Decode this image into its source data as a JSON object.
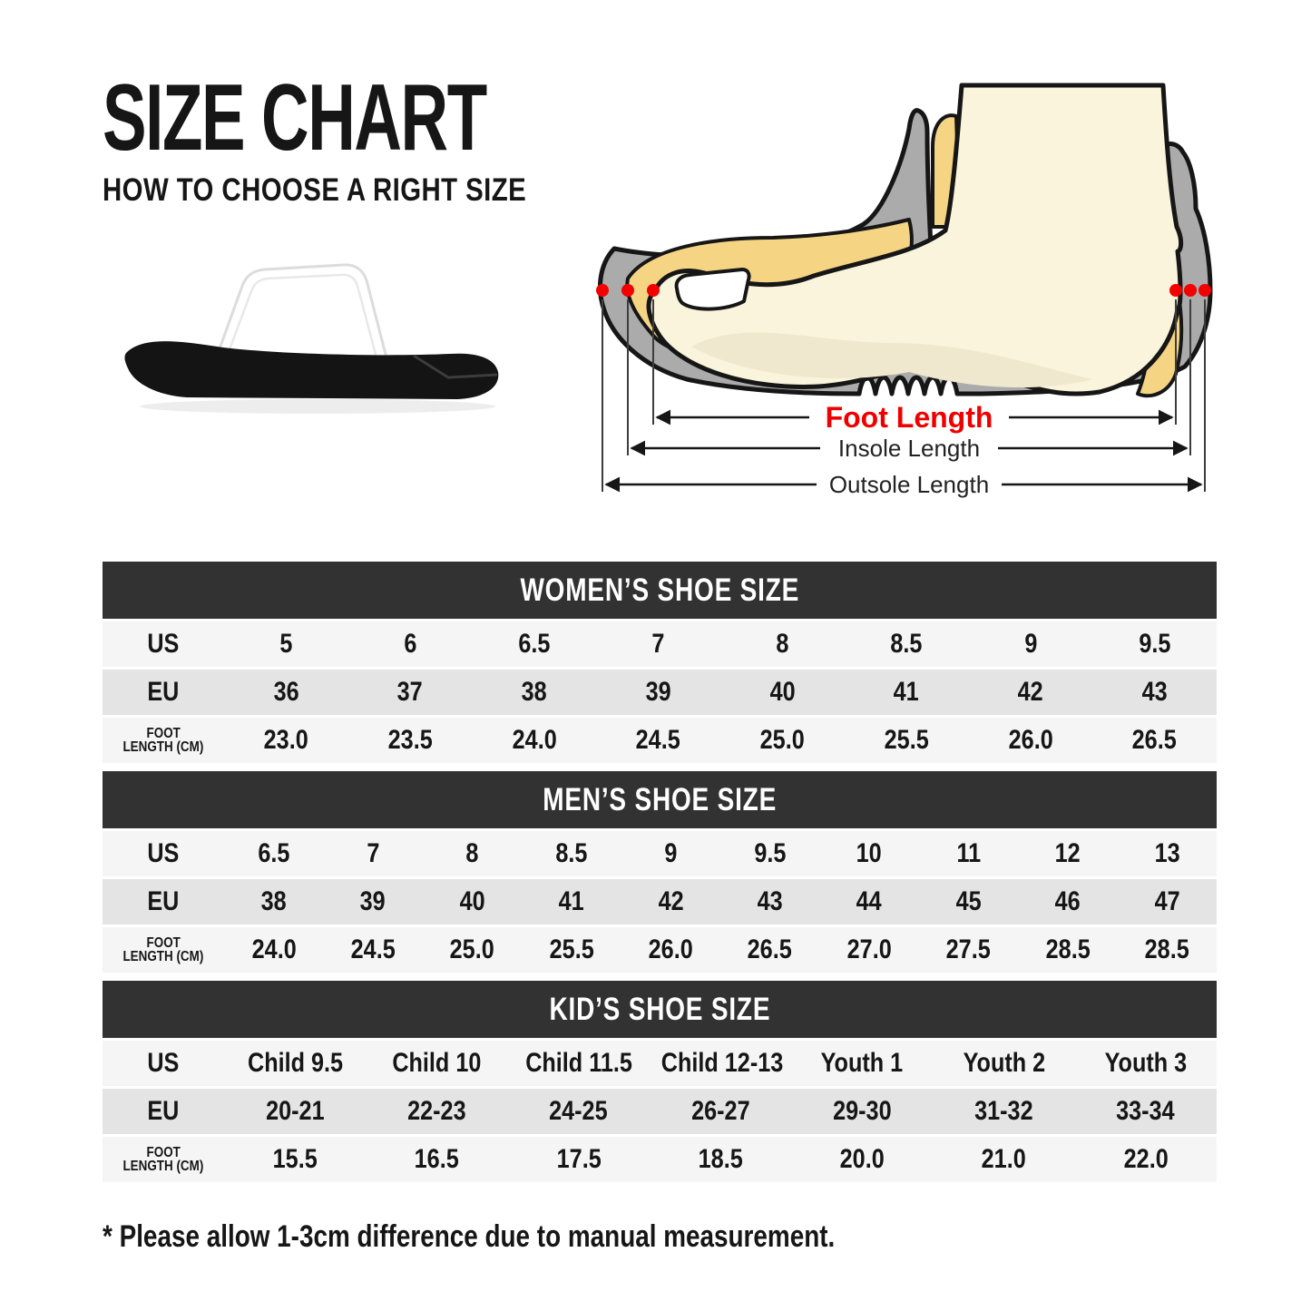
{
  "header": {
    "title": "SIZE CHART",
    "subtitle": "HOW TO CHOOSE A RIGHT SIZE"
  },
  "diagram": {
    "foot_length_label": "Foot Length",
    "insole_length_label": "Insole Length",
    "outsole_length_label": "Outsole Length",
    "colors": {
      "foot_length_text": "#ee0000",
      "marker_dot": "#f40000",
      "shoe_gray": "#ababab",
      "foot_cream": "#faf4dc",
      "insole_yellow": "#f5d584",
      "outline": "#161616"
    }
  },
  "table_style": {
    "header_bg": "#323232",
    "header_text": "#ffffff",
    "row_light": "#f5f5f5",
    "row_gray": "#e4e4e4"
  },
  "footnote": "* Please allow 1-3cm difference due to manual measurement.",
  "chart_data": [
    {
      "type": "table",
      "title": "WOMEN’S SHOE SIZE",
      "row_labels": [
        [
          "US"
        ],
        [
          "EU"
        ],
        [
          "FOOT",
          "LENGTH (CM)"
        ]
      ],
      "rows": [
        [
          "5",
          "6",
          "6.5",
          "7",
          "8",
          "8.5",
          "9",
          "9.5"
        ],
        [
          "36",
          "37",
          "38",
          "39",
          "40",
          "41",
          "42",
          "43"
        ],
        [
          "23.0",
          "23.5",
          "24.0",
          "24.5",
          "25.0",
          "25.5",
          "26.0",
          "26.5"
        ]
      ]
    },
    {
      "type": "table",
      "title": "MEN’S SHOE SIZE",
      "row_labels": [
        [
          "US"
        ],
        [
          "EU"
        ],
        [
          "FOOT",
          "LENGTH (CM)"
        ]
      ],
      "rows": [
        [
          "6.5",
          "7",
          "8",
          "8.5",
          "9",
          "9.5",
          "10",
          "11",
          "12",
          "13"
        ],
        [
          "38",
          "39",
          "40",
          "41",
          "42",
          "43",
          "44",
          "45",
          "46",
          "47"
        ],
        [
          "24.0",
          "24.5",
          "25.0",
          "25.5",
          "26.0",
          "26.5",
          "27.0",
          "27.5",
          "28.5",
          "28.5"
        ]
      ]
    },
    {
      "type": "table",
      "title": "KID’S SHOE SIZE",
      "row_labels": [
        [
          "US"
        ],
        [
          "EU"
        ],
        [
          "FOOT",
          "LENGTH (CM)"
        ]
      ],
      "rows": [
        [
          "Child 9.5",
          "Child 10",
          "Child 11.5",
          "Child 12-13",
          "Youth 1",
          "Youth 2",
          "Youth 3"
        ],
        [
          "20-21",
          "22-23",
          "24-25",
          "26-27",
          "29-30",
          "31-32",
          "33-34"
        ],
        [
          "15.5",
          "16.5",
          "17.5",
          "18.5",
          "20.0",
          "21.0",
          "22.0"
        ]
      ]
    }
  ]
}
